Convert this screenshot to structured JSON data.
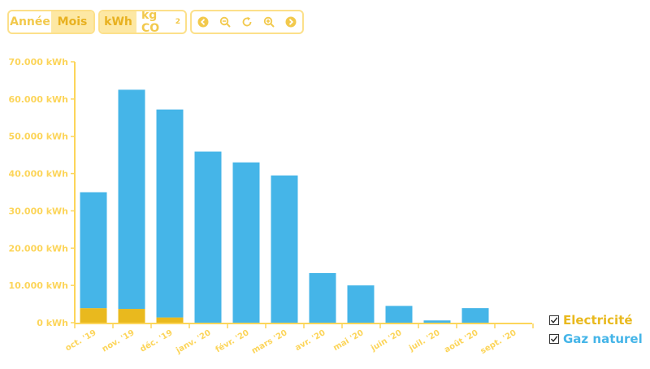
{
  "toolbar": {
    "period": {
      "year_label": "Année",
      "month_label": "Mois",
      "active": "month"
    },
    "unit": {
      "kwh_label": "kWh",
      "co2_label": "kg CO",
      "co2_sub": "2",
      "active": "kwh"
    },
    "nav_icons": [
      "arrow-left-icon",
      "zoom-out-icon",
      "reset-icon",
      "zoom-in-icon",
      "arrow-right-icon"
    ]
  },
  "colors": {
    "electricity": "#e9b91e",
    "gas": "#45b5e8",
    "axis": "#fcd55a",
    "button_active_bg": "#fde8a4",
    "button_text": "#f2c94c"
  },
  "legend": {
    "items": [
      {
        "label": "Electricité",
        "color": "#e9b91e",
        "checked": true
      },
      {
        "label": "Gaz naturel",
        "color": "#45b5e8",
        "checked": true
      }
    ]
  },
  "chart_data": {
    "type": "bar",
    "stacked": true,
    "categories": [
      "oct. '19",
      "nov. '19",
      "déc. '19",
      "janv. '20",
      "févr. '20",
      "mars '20",
      "avr. '20",
      "mai '20",
      "juin '20",
      "juil. '20",
      "août '20",
      "sept. '20"
    ],
    "series": [
      {
        "name": "Electricité",
        "color": "#e9b91e",
        "values": [
          3900,
          3700,
          1400,
          0,
          0,
          0,
          0,
          0,
          0,
          0,
          0,
          0
        ]
      },
      {
        "name": "Gaz naturel",
        "color": "#45b5e8",
        "values": [
          31100,
          58800,
          55800,
          45900,
          43000,
          39500,
          13300,
          10000,
          4500,
          600,
          3900,
          0
        ]
      }
    ],
    "ylim": [
      0,
      70000
    ],
    "yticks": [
      0,
      10000,
      20000,
      30000,
      40000,
      50000,
      60000,
      70000
    ],
    "ytick_labels": [
      "0 kWh",
      "10.000 kWh",
      "20.000 kWh",
      "30.000 kWh",
      "40.000 kWh",
      "50.000 kWh",
      "60.000 kWh",
      "70.000 kWh"
    ],
    "grid": false,
    "legend_position": "bottom-right"
  }
}
